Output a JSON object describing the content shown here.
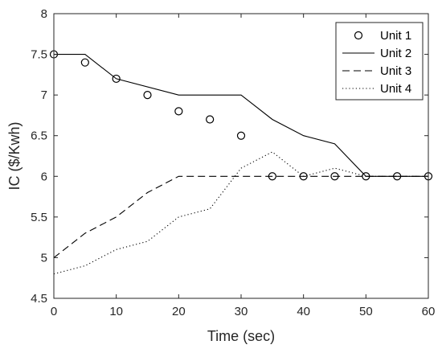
{
  "chart_data": {
    "type": "line",
    "xlabel": "Time (sec)",
    "ylabel": "IC ($/Kwh)",
    "xlim": [
      0,
      60
    ],
    "ylim": [
      4.5,
      8
    ],
    "xticks": [
      0,
      10,
      20,
      30,
      40,
      50,
      60
    ],
    "yticks": [
      4.5,
      5,
      5.5,
      6,
      6.5,
      7,
      7.5,
      8
    ],
    "xtick_labels": [
      "0",
      "10",
      "20",
      "30",
      "40",
      "50",
      "60"
    ],
    "ytick_labels": [
      "4.5",
      "5",
      "5.5",
      "6",
      "6.5",
      "7",
      "7.5",
      "8"
    ],
    "grid": false,
    "legend_position": "top-right",
    "series": [
      {
        "name": "Unit 1",
        "style": "markers-circle",
        "color": "#000000",
        "x": [
          0,
          5,
          10,
          15,
          20,
          25,
          30,
          35,
          40,
          45,
          50,
          55,
          60
        ],
        "y": [
          7.5,
          7.4,
          7.2,
          7.0,
          6.8,
          6.7,
          6.5,
          6.0,
          6.0,
          6.0,
          6.0,
          6.0,
          6.0
        ]
      },
      {
        "name": "Unit 2",
        "style": "solid",
        "color": "#000000",
        "x": [
          0,
          5,
          10,
          20,
          30,
          35,
          40,
          45,
          50,
          55,
          60
        ],
        "y": [
          7.5,
          7.5,
          7.2,
          7.0,
          7.0,
          6.7,
          6.5,
          6.4,
          6.0,
          6.0,
          6.0
        ]
      },
      {
        "name": "Unit 3",
        "style": "dashed",
        "color": "#000000",
        "x": [
          0,
          5,
          10,
          15,
          20,
          30,
          40,
          50,
          60
        ],
        "y": [
          5.0,
          5.3,
          5.5,
          5.8,
          6.0,
          6.0,
          6.0,
          6.0,
          6.0
        ]
      },
      {
        "name": "Unit 4",
        "style": "dotted",
        "color": "#000000",
        "x": [
          0,
          5,
          10,
          15,
          20,
          25,
          30,
          35,
          40,
          45,
          50,
          55,
          60
        ],
        "y": [
          4.8,
          4.9,
          5.1,
          5.2,
          5.5,
          5.6,
          6.1,
          6.3,
          6.0,
          6.1,
          6.0,
          6.0,
          6.0
        ]
      }
    ]
  }
}
